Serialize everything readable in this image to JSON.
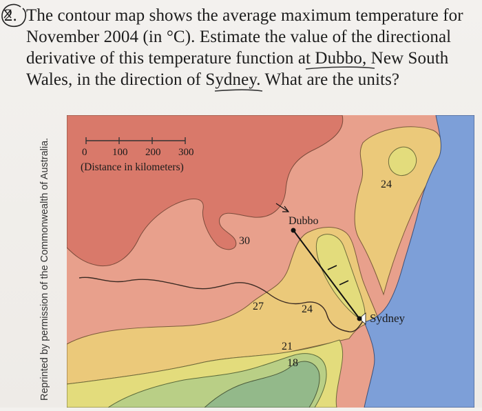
{
  "problem": {
    "number": "2.",
    "lines": [
      "The contour map shows the average maximum temperature for",
      "November 2004 (in °C). Estimate the value of the directional",
      "derivative of this temperature function at Dubbo, New South",
      "Wales, in the direction of Sydney. What are the units?"
    ]
  },
  "side_credit": "Reprinted by permission of the Commonwealth of Australia.",
  "map": {
    "scale_ticks": [
      "0",
      "100",
      "200",
      "300"
    ],
    "scale_caption": "(Distance in kilometers)",
    "places": {
      "dubbo": "Dubbo",
      "sydney": "Sydney"
    },
    "contours": {
      "c30": "30",
      "c27": "27",
      "c24_center": "24",
      "c24_northeast": "24",
      "c21": "21",
      "c18": "18"
    },
    "colors": {
      "ocean": "#7d9fd8",
      "band_30_plus": "#d9796a",
      "band_27_30": "#e8a08c",
      "band_24_27": "#ebc97a",
      "band_21_24": "#e3dc7c",
      "band_18_21": "#b9cf86",
      "band_below_18": "#93b98a"
    }
  }
}
